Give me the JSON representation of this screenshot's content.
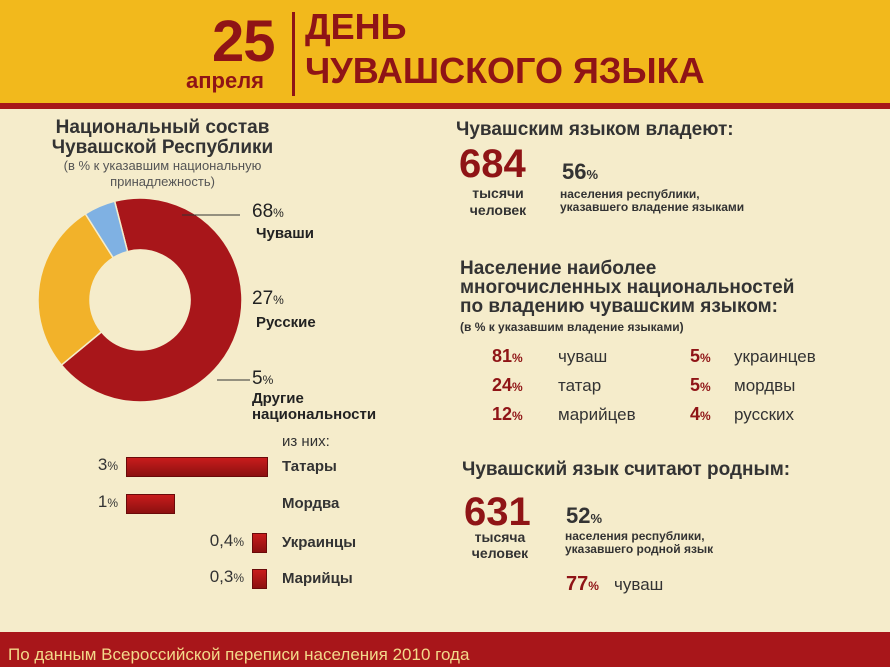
{
  "header": {
    "day": "25",
    "month": "апреля",
    "title_line1": "ДЕНЬ",
    "title_line2": "ЧУВАШСКОГО ЯЗЫКА"
  },
  "composition": {
    "title_line1": "Национальный состав",
    "title_line2": "Чувашской Республики",
    "note_line1": "(в % к указавшим национальную",
    "note_line2": "принадлежность)",
    "slices": [
      {
        "pct": "68",
        "unit": "%",
        "label": "Чуваши"
      },
      {
        "pct": "27",
        "unit": "%",
        "label": "Русские"
      },
      {
        "pct": "5",
        "unit": "%",
        "label_line1": "Другие",
        "label_line2": "национальности"
      }
    ],
    "of_them": "из них:",
    "bars": [
      {
        "pct": "3",
        "unit": "%",
        "label": "Татары"
      },
      {
        "pct": "1",
        "unit": "%",
        "label": "Мордва"
      },
      {
        "pct": "0,4",
        "unit": "%",
        "label": "Украинцы"
      },
      {
        "pct": "0,3",
        "unit": "%",
        "label": "Марийцы"
      }
    ]
  },
  "speakers": {
    "title": "Чувашским языком владеют:",
    "count": "684",
    "count_unit_line1": "тысячи",
    "count_unit_line2": "человек",
    "pct": "56",
    "pct_unit": "%",
    "desc_line1": "населения  республики,",
    "desc_line2": "указавшего владение языками"
  },
  "nationalities": {
    "title_line1": "Население наиболее",
    "title_line2": "многочисленных национальностей",
    "title_line3": "по владению чувашским языком:",
    "note": "(в % к указавшим владение языками)",
    "left": [
      {
        "pct": "81",
        "unit": "%",
        "name": "чуваш"
      },
      {
        "pct": "24",
        "unit": "%",
        "name": "татар"
      },
      {
        "pct": "12",
        "unit": "%",
        "name": "марийцев"
      }
    ],
    "right": [
      {
        "pct": "5",
        "unit": "%",
        "name": "украинцев"
      },
      {
        "pct": "5",
        "unit": "%",
        "name": "мордвы"
      },
      {
        "pct": "4",
        "unit": "%",
        "name": "русских"
      }
    ]
  },
  "native": {
    "title": "Чувашский язык считают родным:",
    "count": "631",
    "count_unit_line1": "тысяча",
    "count_unit_line2": "человек",
    "pct": "52",
    "pct_unit": "%",
    "desc_line1": "населения  республики,",
    "desc_line2": "указавшего родной язык",
    "chuvash_pct": "77",
    "chuvash_unit": "%",
    "chuvash_label": "чуваш"
  },
  "footer": {
    "text": "По данным Всероссийской переписи населения 2010 года"
  },
  "colors": {
    "header_bg": "#f2b91c",
    "accent_red": "#8f1416",
    "background": "#f5eccb",
    "slice_chuvash": "#a8161a",
    "slice_russian": "#f2b22a",
    "slice_other": "#7fb1e3"
  },
  "chart_data": [
    {
      "type": "pie",
      "categories": [
        "Чуваши",
        "Русские",
        "Другие национальности"
      ],
      "values": [
        68,
        27,
        5
      ],
      "colors": [
        "#a8161a",
        "#f2b22a",
        "#7fb1e3"
      ],
      "title": "Национальный состав Чувашской Республики"
    },
    {
      "type": "bar",
      "categories": [
        "Татары",
        "Мордва",
        "Украинцы",
        "Марийцы"
      ],
      "values": [
        3,
        1,
        0.4,
        0.3
      ],
      "title": "из них:"
    }
  ]
}
